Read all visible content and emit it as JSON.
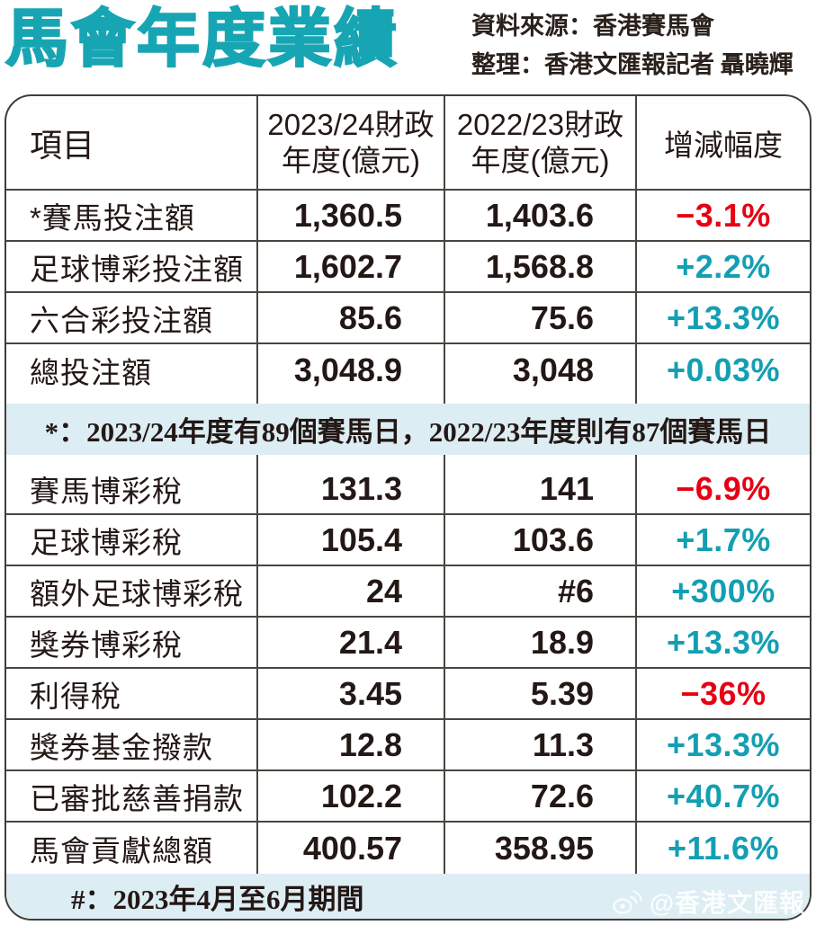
{
  "page": {
    "title": "馬會年度業績",
    "source_line1": "資料來源：香港賽馬會",
    "source_line2": "整理：香港文匯報記者 聶曉輝",
    "watermark": "@香港文匯報"
  },
  "colors": {
    "accent_teal": "#17A5B4",
    "positive_teal": "#139FB2",
    "negative_red": "#E60013",
    "note_band_bg": "#DCEDF3",
    "grid_line": "#4a4540",
    "text": "#231815"
  },
  "table": {
    "header": {
      "col_item": "項目",
      "col_fy2024_line1": "2023/24財政",
      "col_fy2024_line2": "年度(億元)",
      "col_fy2023_line1": "2022/23財政",
      "col_fy2023_line2": "年度(億元)",
      "col_change": "增減幅度"
    },
    "note_racing_days": "*：2023/24年度有89個賽馬日，2022/23年度則有87個賽馬日",
    "note_period": "#：2023年4月至6月期間",
    "section1": [
      {
        "label": "*賽馬投注額",
        "fy2024": "1,360.5",
        "fy2023": "1,403.6",
        "change": "−3.1%",
        "trend": "negative"
      },
      {
        "label": "足球博彩投注額",
        "fy2024": "1,602.7",
        "fy2023": "1,568.8",
        "change": "+2.2%",
        "trend": "positive"
      },
      {
        "label": "六合彩投注額",
        "fy2024": "85.6",
        "fy2023": "75.6",
        "change": "+13.3%",
        "trend": "positive"
      },
      {
        "label": "總投注額",
        "fy2024": "3,048.9",
        "fy2023": "3,048",
        "change": "+0.03%",
        "trend": "positive"
      }
    ],
    "section2": [
      {
        "label": "賽馬博彩稅",
        "fy2024": "131.3",
        "fy2023": "141",
        "change": "−6.9%",
        "trend": "negative"
      },
      {
        "label": "足球博彩稅",
        "fy2024": "105.4",
        "fy2023": "103.6",
        "change": "+1.7%",
        "trend": "positive"
      },
      {
        "label": "額外足球博彩稅",
        "fy2024": "24",
        "fy2023": "#6",
        "change": "+300%",
        "trend": "positive"
      },
      {
        "label": "獎券博彩稅",
        "fy2024": "21.4",
        "fy2023": "18.9",
        "change": "+13.3%",
        "trend": "positive"
      },
      {
        "label": "利得稅",
        "fy2024": "3.45",
        "fy2023": "5.39",
        "change": "−36%",
        "trend": "negative"
      },
      {
        "label": "獎券基金撥款",
        "fy2024": "12.8",
        "fy2023": "11.3",
        "change": "+13.3%",
        "trend": "positive"
      },
      {
        "label": "已審批慈善捐款",
        "fy2024": "102.2",
        "fy2023": "72.6",
        "change": "+40.7%",
        "trend": "positive"
      },
      {
        "label": "馬會貢獻總額",
        "fy2024": "400.57",
        "fy2023": "358.95",
        "change": "+11.6%",
        "trend": "positive"
      }
    ]
  },
  "chart_data": {
    "type": "table",
    "title": "馬會年度業績",
    "source": "資料來源：香港賽馬會",
    "compiled_by": "整理：香港文匯報記者 聶曉輝",
    "columns": [
      "項目",
      "2023/24財政年度(億元)",
      "2022/23財政年度(億元)",
      "增減幅度"
    ],
    "rows": [
      [
        "*賽馬投注額",
        1360.5,
        1403.6,
        "−3.1%"
      ],
      [
        "足球博彩投注額",
        1602.7,
        1568.8,
        "+2.2%"
      ],
      [
        "六合彩投注額",
        85.6,
        75.6,
        "+13.3%"
      ],
      [
        "總投注額",
        3048.9,
        3048,
        "+0.03%"
      ],
      [
        "賽馬博彩稅",
        131.3,
        141,
        "−6.9%"
      ],
      [
        "足球博彩稅",
        105.4,
        103.6,
        "+1.7%"
      ],
      [
        "額外足球博彩稅",
        24,
        "#6",
        "+300%"
      ],
      [
        "獎券博彩稅",
        21.4,
        18.9,
        "+13.3%"
      ],
      [
        "利得稅",
        3.45,
        5.39,
        "−36%"
      ],
      [
        "獎券基金撥款",
        12.8,
        11.3,
        "+13.3%"
      ],
      [
        "已審批慈善捐款",
        102.2,
        72.6,
        "+40.7%"
      ],
      [
        "馬會貢獻總額",
        400.57,
        358.95,
        "+11.6%"
      ]
    ],
    "notes": [
      "*：2023/24年度有89個賽馬日，2022/23年度則有87個賽馬日",
      "#：2023年4月至6月期間"
    ]
  }
}
